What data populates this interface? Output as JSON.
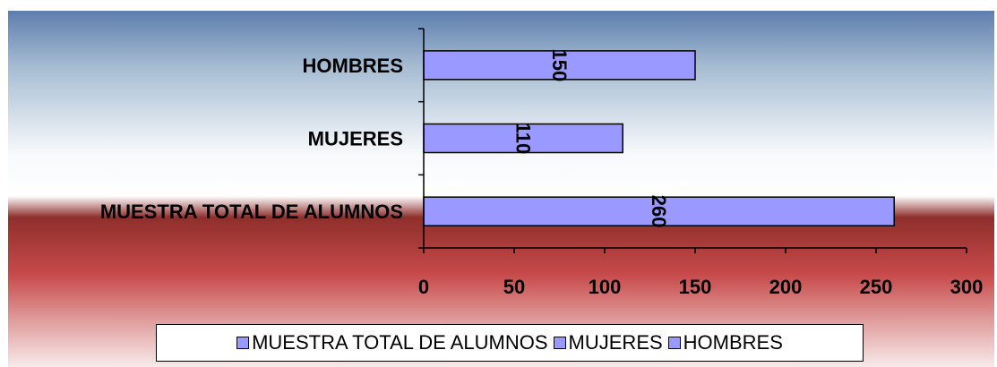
{
  "chart_data": {
    "type": "bar",
    "orientation": "horizontal",
    "categories": [
      "HOMBRES",
      "MUJERES",
      "MUESTRA TOTAL DE ALUMNOS"
    ],
    "values": [
      150,
      110,
      260
    ],
    "data_labels": [
      "150",
      "110",
      "260"
    ],
    "xlim": [
      0,
      300
    ],
    "x_ticks": [
      "0",
      "50",
      "100",
      "150",
      "200",
      "250",
      "300"
    ],
    "grid": false,
    "legend_position": "bottom",
    "legend": [
      "MUESTRA TOTAL DE ALUMNOS",
      "MUJERES",
      "HOMBRES"
    ]
  },
  "colors": {
    "bar_fill": "#9999ff",
    "bar_stroke": "#000000",
    "background_top": "#5f80b0",
    "background_middle": "#ffffff",
    "background_bottom": "#b33a3a"
  }
}
